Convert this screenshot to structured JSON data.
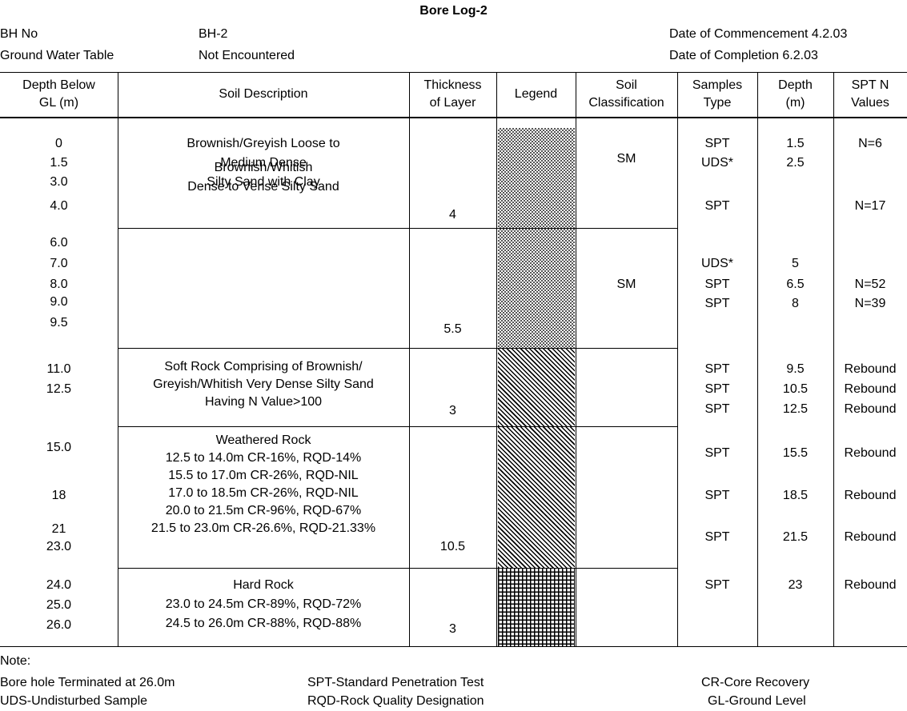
{
  "title": "Bore Log-2",
  "header": {
    "bh_no_label": "BH No",
    "bh_no_value": "BH-2",
    "gwt_label": "Ground Water Table",
    "gwt_value": "Not Encountered",
    "commencement": "Date of Commencement 4.2.03",
    "completion": "Date of Completion 6.2.03"
  },
  "columns": [
    "Depth Below\nGL (m)",
    "Soil Description",
    "Thickness\nof Layer",
    "Legend",
    "Soil\nClassification",
    "Samples\nType",
    "Depth\n(m)",
    "SPT N\nValues"
  ],
  "layers": [
    {
      "depths": [
        "0",
        "1.5",
        "3.0",
        "4.0"
      ],
      "description": [
        "Brownish/Greyish Loose to",
        "Medium Dense",
        "Silty Sand with Clay"
      ],
      "thickness": "4",
      "legend": "fine-checker",
      "classification": "SM"
    },
    {
      "depths": [
        "6.0",
        "7.0",
        "8.0",
        "9.0",
        "9.5"
      ],
      "description": [
        "Brownish/Whitish",
        "Dense to Vense Silty Sand"
      ],
      "thickness": "5.5",
      "legend": "fine-checker",
      "classification": "SM"
    },
    {
      "depths": [
        "11.0",
        "12.5"
      ],
      "description": [
        "Soft Rock Comprising of Brownish/",
        "Greyish/Whitish Very Dense Silty Sand",
        "Having N Value>100"
      ],
      "thickness": "3",
      "legend": "diagonal-hatch",
      "classification": ""
    },
    {
      "depths": [
        "15.0",
        "18",
        "21",
        "23.0"
      ],
      "description": [
        "Weathered Rock",
        "12.5 to 14.0m CR-16%, RQD-14%",
        "15.5 to 17.0m CR-26%, RQD-NIL",
        "17.0 to 18.5m CR-26%, RQD-NIL",
        "20.0 to 21.5m CR-96%, RQD-67%",
        "21.5 to 23.0m CR-26.6%, RQD-21.33%"
      ],
      "thickness": "10.5",
      "legend": "diagonal-hatch",
      "classification": ""
    },
    {
      "depths": [
        "24.0",
        "25.0",
        "26.0"
      ],
      "description": [
        "Hard Rock",
        "23.0 to 24.5m CR-89%, RQD-72%",
        "24.5 to 26.0m CR-88%, RQD-88%"
      ],
      "thickness": "3",
      "legend": "grid",
      "classification": ""
    }
  ],
  "samples": [
    {
      "type": "SPT",
      "depth": "1.5",
      "n": "N=6"
    },
    {
      "type": "UDS*",
      "depth": "2.5",
      "n": ""
    },
    {
      "type": "SPT",
      "depth": "",
      "n": "N=17"
    },
    {
      "type": "UDS*",
      "depth": "5",
      "n": ""
    },
    {
      "type": "SPT",
      "depth": "6.5",
      "n": "N=52"
    },
    {
      "type": "SPT",
      "depth": "8",
      "n": "N=39"
    },
    {
      "type": "SPT",
      "depth": "9.5",
      "n": "Rebound"
    },
    {
      "type": "SPT",
      "depth": "10.5",
      "n": "Rebound"
    },
    {
      "type": "SPT",
      "depth": "12.5",
      "n": "Rebound"
    },
    {
      "type": "SPT",
      "depth": "15.5",
      "n": "Rebound"
    },
    {
      "type": "SPT",
      "depth": "18.5",
      "n": "Rebound"
    },
    {
      "type": "SPT",
      "depth": "21.5",
      "n": "Rebound"
    },
    {
      "type": "SPT",
      "depth": "23",
      "n": "Rebound"
    }
  ],
  "notes": {
    "heading": "Note:",
    "terminated": "Bore hole Terminated at 26.0m",
    "uds": "UDS-Undisturbed Sample",
    "spt": "SPT-Standard Penetration Test",
    "rqd": "RQD-Rock Quality Designation",
    "cr": "CR-Core Recovery",
    "gl": "GL-Ground Level"
  }
}
